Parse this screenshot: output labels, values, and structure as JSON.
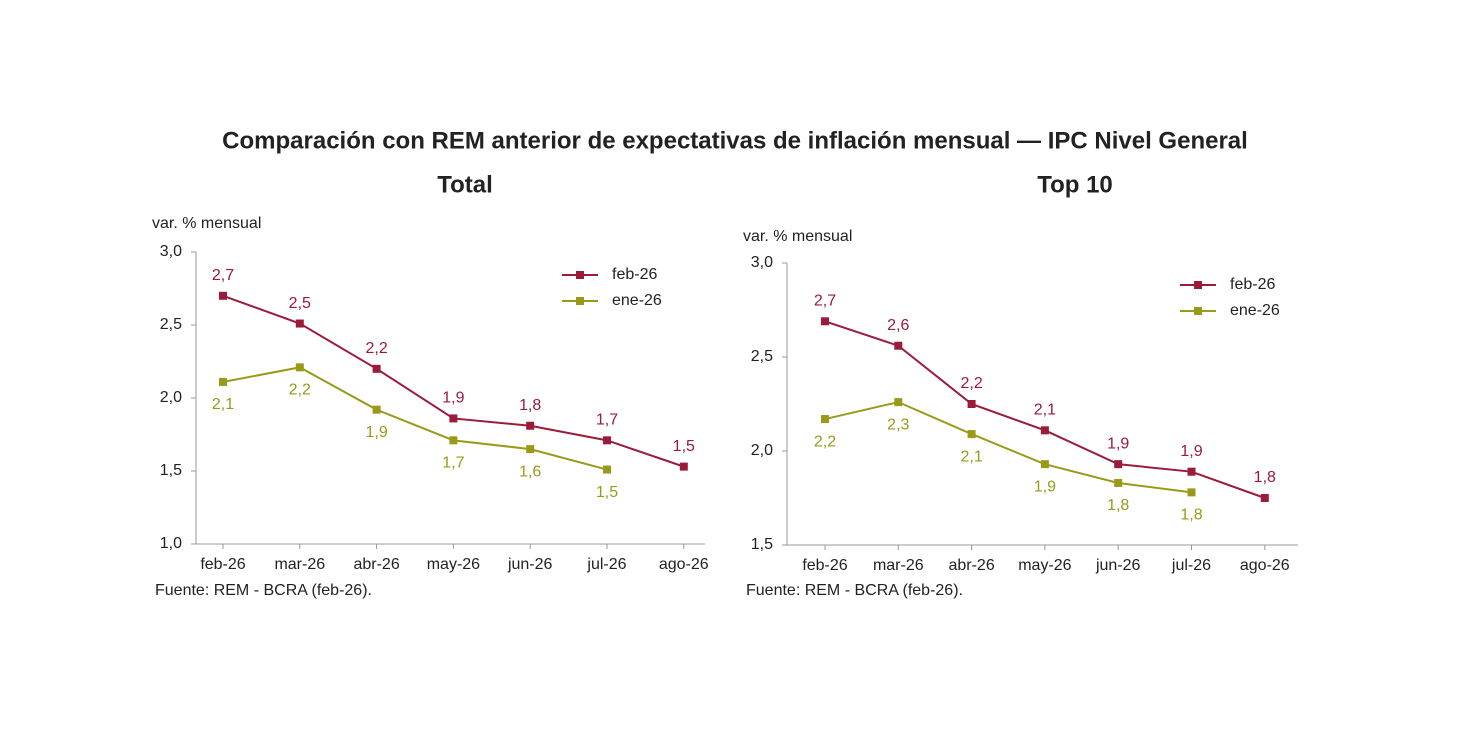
{
  "title": "Comparación con REM anterior de expectativas de inflación mensual — IPC Nivel General",
  "chart_data": [
    {
      "type": "line",
      "title": "Total",
      "y_label": "var. % mensual",
      "note": "Fuente: REM - BCRA (feb-26).",
      "categories": [
        "feb-26",
        "mar-26",
        "abr-26",
        "may-26",
        "jun-26",
        "jul-26",
        "ago-26"
      ],
      "ylim": [
        1.0,
        3.0
      ],
      "yticks": [
        {
          "value": 1.0,
          "label": "1,0"
        },
        {
          "value": 1.5,
          "label": "1,5"
        },
        {
          "value": 2.0,
          "label": "2,0"
        },
        {
          "value": 2.5,
          "label": "2,5"
        },
        {
          "value": 3.0,
          "label": "3,0"
        }
      ],
      "legend": "top-right",
      "series": [
        {
          "name": "feb-26",
          "color": "#9b1b3a",
          "values": [
            2.7,
            2.51,
            2.2,
            1.86,
            1.81,
            1.71,
            1.53
          ],
          "value_labels": [
            "2,7",
            "2,5",
            "2,2",
            "1,9",
            "1,8",
            "1,7",
            "1,5"
          ]
        },
        {
          "name": "ene-26",
          "color": "#9a9a1a",
          "values": [
            2.11,
            2.21,
            1.92,
            1.71,
            1.65,
            1.51,
            null
          ],
          "value_labels": [
            "2,1",
            "2,2",
            "1,9",
            "1,7",
            "1,6",
            "1,5",
            null
          ]
        }
      ]
    },
    {
      "type": "line",
      "title": "Top 10",
      "y_label": "var. % mensual",
      "note": "Fuente: REM - BCRA (feb-26).",
      "categories": [
        "feb-26",
        "mar-26",
        "abr-26",
        "may-26",
        "jun-26",
        "jul-26",
        "ago-26"
      ],
      "ylim": [
        1.5,
        3.0
      ],
      "yticks": [
        {
          "value": 1.5,
          "label": "1,5"
        },
        {
          "value": 2.0,
          "label": "2,0"
        },
        {
          "value": 2.5,
          "label": "2,5"
        },
        {
          "value": 3.0,
          "label": "3,0"
        }
      ],
      "legend": "top-right",
      "series": [
        {
          "name": "feb-26",
          "color": "#9b1b3a",
          "values": [
            2.69,
            2.56,
            2.25,
            2.11,
            1.93,
            1.89,
            1.75
          ],
          "value_labels": [
            "2,7",
            "2,6",
            "2,2",
            "2,1",
            "1,9",
            "1,9",
            "1,8"
          ]
        },
        {
          "name": "ene-26",
          "color": "#9a9a1a",
          "values": [
            2.17,
            2.26,
            2.09,
            1.93,
            1.83,
            1.78,
            null
          ],
          "value_labels": [
            "2,2",
            "2,3",
            "2,1",
            "1,9",
            "1,8",
            "1,8",
            null
          ]
        }
      ]
    }
  ]
}
